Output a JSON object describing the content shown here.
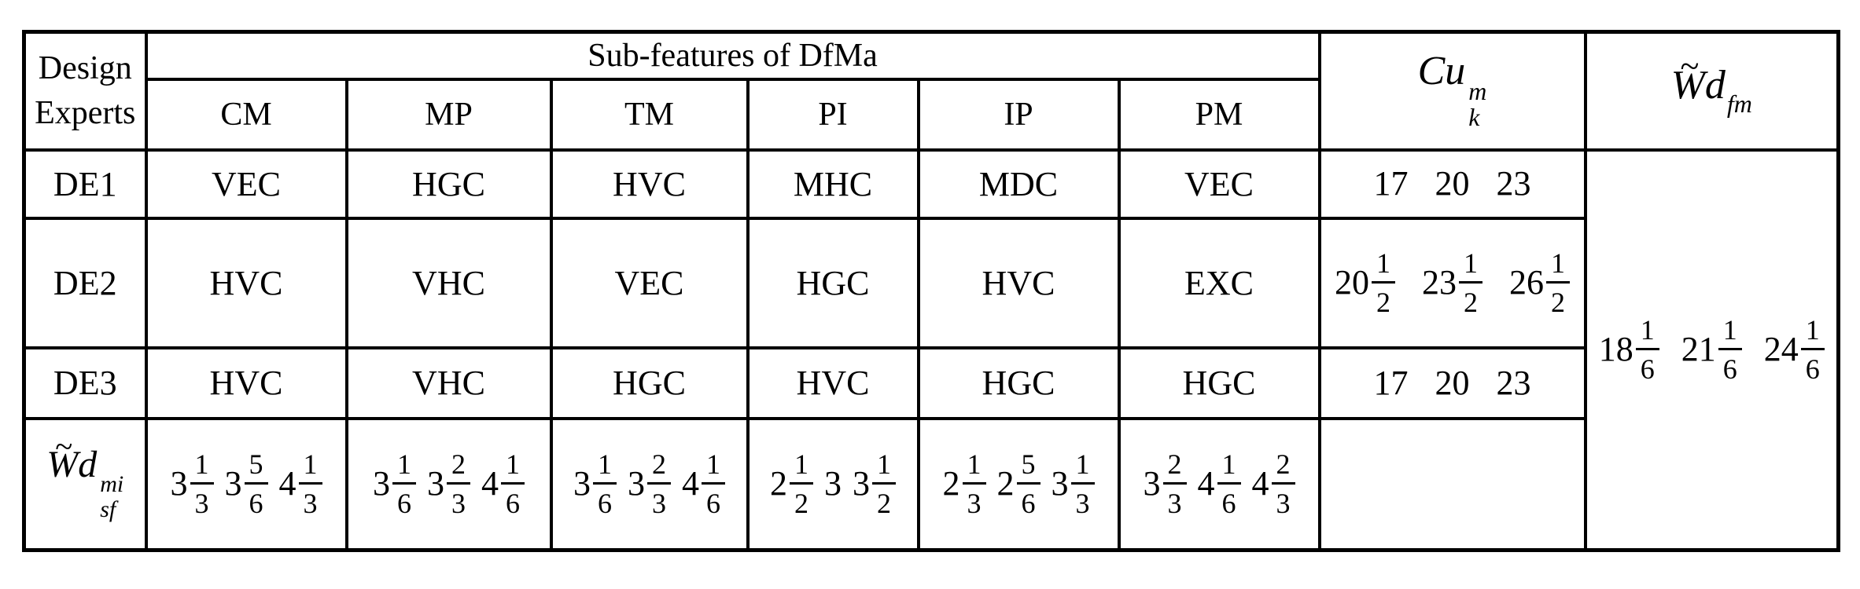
{
  "table": {
    "header": {
      "row_label_line1": "Design",
      "row_label_line2": "Experts",
      "group_title": "Sub-features of DfMa",
      "columns": [
        "CM",
        "MP",
        "TM",
        "PI",
        "IP",
        "PM"
      ],
      "cu": {
        "base": "Cu",
        "sup": "m",
        "sub": "k"
      },
      "wd": {
        "tilde": "~",
        "w": "W",
        "d": "d",
        "sub": "fm"
      }
    },
    "rows": [
      {
        "label": "DE1",
        "features": [
          "VEC",
          "HGC",
          "HVC",
          "MHC",
          "MDC",
          "VEC"
        ],
        "cu": [
          {
            "whole": "17"
          },
          {
            "whole": "20"
          },
          {
            "whole": "23"
          }
        ]
      },
      {
        "label": "DE2",
        "features": [
          "HVC",
          "VHC",
          "VEC",
          "HGC",
          "HVC",
          "EXC"
        ],
        "cu": [
          {
            "whole": "20",
            "num": "1",
            "den": "2"
          },
          {
            "whole": "23",
            "num": "1",
            "den": "2"
          },
          {
            "whole": "26",
            "num": "1",
            "den": "2"
          }
        ]
      },
      {
        "label": "DE3",
        "features": [
          "HVC",
          "VHC",
          "HGC",
          "HVC",
          "HGC",
          "HGC"
        ],
        "cu": [
          {
            "whole": "17"
          },
          {
            "whole": "20"
          },
          {
            "whole": "23"
          }
        ]
      }
    ],
    "wd_fm_values": [
      {
        "whole": "18",
        "num": "1",
        "den": "6"
      },
      {
        "whole": "21",
        "num": "1",
        "den": "6"
      },
      {
        "whole": "24",
        "num": "1",
        "den": "6"
      }
    ],
    "weight_row": {
      "label": {
        "tilde": "~",
        "w": "W",
        "d": "d",
        "sup": "mi",
        "sub": "sf"
      },
      "values": [
        [
          {
            "whole": "3",
            "num": "1",
            "den": "3"
          },
          {
            "whole": "3",
            "num": "5",
            "den": "6"
          },
          {
            "whole": "4",
            "num": "1",
            "den": "3"
          }
        ],
        [
          {
            "whole": "3",
            "num": "1",
            "den": "6"
          },
          {
            "whole": "3",
            "num": "2",
            "den": "3"
          },
          {
            "whole": "4",
            "num": "1",
            "den": "6"
          }
        ],
        [
          {
            "whole": "3",
            "num": "1",
            "den": "6"
          },
          {
            "whole": "3",
            "num": "2",
            "den": "3"
          },
          {
            "whole": "4",
            "num": "1",
            "den": "6"
          }
        ],
        [
          {
            "whole": "2",
            "num": "1",
            "den": "2"
          },
          {
            "whole": "3"
          },
          {
            "whole": "3",
            "num": "1",
            "den": "2"
          }
        ],
        [
          {
            "whole": "2",
            "num": "1",
            "den": "3"
          },
          {
            "whole": "2",
            "num": "5",
            "den": "6"
          },
          {
            "whole": "3",
            "num": "1",
            "den": "3"
          }
        ],
        [
          {
            "whole": "3",
            "num": "2",
            "den": "3"
          },
          {
            "whole": "4",
            "num": "1",
            "den": "6"
          },
          {
            "whole": "4",
            "num": "2",
            "den": "3"
          }
        ]
      ]
    },
    "colors": {
      "border": "#000000",
      "background": "#ffffff",
      "text": "#000000"
    }
  }
}
